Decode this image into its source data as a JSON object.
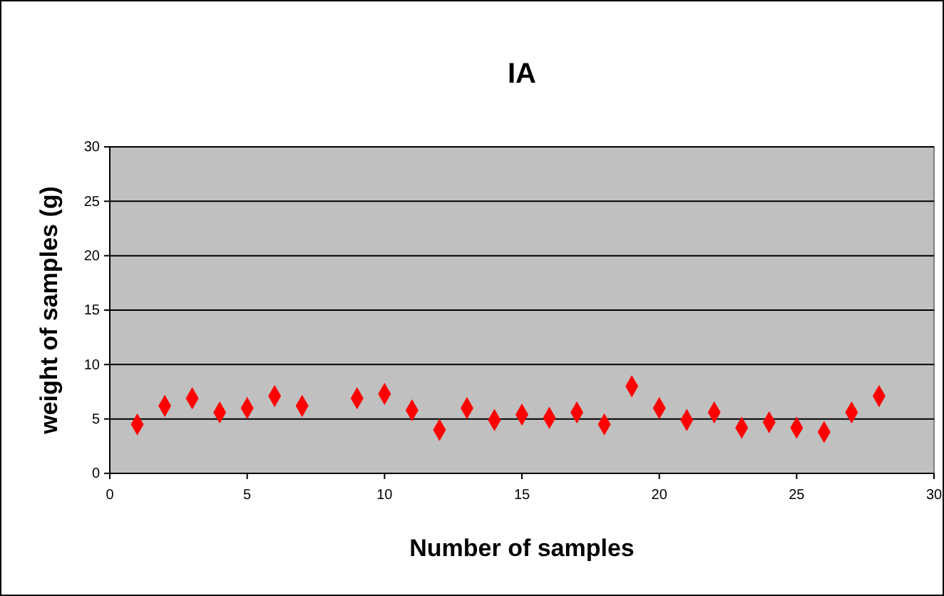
{
  "chart_data": {
    "type": "scatter",
    "title": "IA",
    "xlabel": "Number of samples",
    "ylabel": "weight of samples (g)",
    "x": [
      1,
      2,
      3,
      4,
      5,
      6,
      7,
      9,
      10,
      11,
      12,
      13,
      14,
      15,
      16,
      17,
      18,
      19,
      20,
      21,
      22,
      23,
      24,
      25,
      26,
      27,
      28
    ],
    "values": [
      4.5,
      6.2,
      6.9,
      5.6,
      6.0,
      7.1,
      6.2,
      6.9,
      7.3,
      5.8,
      4.0,
      6.0,
      4.9,
      5.4,
      5.1,
      5.6,
      4.5,
      8.0,
      6.0,
      4.9,
      5.6,
      4.2,
      4.7,
      4.2,
      3.8,
      5.6,
      7.1
    ],
    "color": "#ff0000",
    "marker": "diamond",
    "xlim": [
      0,
      30
    ],
    "xticks": [
      0,
      5,
      10,
      15,
      20,
      25,
      30
    ],
    "ylim": [
      0,
      30
    ],
    "yticks": [
      0,
      5,
      10,
      15,
      20,
      25,
      30
    ],
    "grid": "y"
  }
}
